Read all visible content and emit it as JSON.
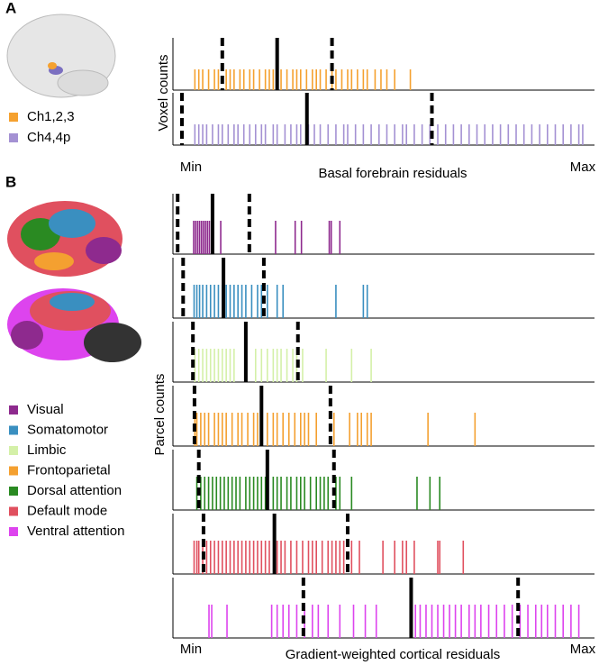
{
  "chart_data": [
    {
      "type": "rug",
      "panel_label": "A",
      "xlabel": "Basal forebrain residuals",
      "ylabel": "Voxel counts",
      "xlim": [
        -4.6,
        103
      ],
      "xticks": [
        {
          "value": 0,
          "label": "Min"
        },
        {
          "value": 100,
          "label": "Max"
        }
      ],
      "series": [
        {
          "name": "Ch1,2,3",
          "color": "#f5a12f",
          "summary": [
            8,
            22,
            36
          ],
          "values": [
            1,
            2,
            3,
            4.5,
            6,
            7,
            9,
            10,
            11,
            12.5,
            13.5,
            15,
            16,
            17.5,
            19,
            20,
            21,
            23,
            24.5,
            26,
            27,
            28,
            29.5,
            31,
            32,
            33,
            34.5,
            36,
            37,
            38.5,
            40,
            41,
            42.5,
            44,
            45,
            47,
            48.5,
            50,
            52,
            56
          ]
        },
        {
          "name": "Ch4,4p",
          "color": "#a491d3",
          "summary": [
            -2.3,
            29.6,
            61.5
          ],
          "values": [
            1,
            2,
            3,
            4,
            5.5,
            7,
            8,
            9.5,
            11,
            12,
            13.5,
            15,
            16.5,
            18,
            19,
            21,
            22,
            24,
            25.5,
            27,
            28,
            30,
            31.5,
            33,
            35,
            37,
            39,
            40,
            42,
            44,
            46,
            48,
            50,
            52,
            54,
            55,
            57,
            59,
            61,
            63,
            65,
            67,
            69,
            71,
            73,
            75,
            77,
            79,
            81,
            83,
            85,
            87,
            89,
            91,
            93,
            95,
            97,
            99,
            100
          ]
        }
      ]
    },
    {
      "type": "rug",
      "panel_label": "B",
      "xlabel": "Gradient-weighted cortical residuals",
      "ylabel": "Parcel counts",
      "xlim": [
        -4.6,
        103
      ],
      "xticks": [
        {
          "value": 0,
          "label": "Min"
        },
        {
          "value": 100,
          "label": "Max"
        }
      ],
      "series": [
        {
          "name": "Visual",
          "color": "#8e2a8e",
          "summary": [
            -3.4,
            5.5,
            14.9
          ],
          "values": [
            0.7,
            1.2,
            1.7,
            2.2,
            2.7,
            3.2,
            3.7,
            4.2,
            4.7,
            5.3,
            7.6,
            21.6,
            26.6,
            28.2,
            35.3,
            35.8,
            38
          ]
        },
        {
          "name": "Somatomotor",
          "color": "#3a8fc0",
          "summary": [
            -2,
            8.3,
            18.6
          ],
          "values": [
            0.8,
            1.5,
            2.2,
            3,
            4,
            5,
            6,
            7,
            8,
            9,
            10,
            11,
            12,
            13,
            14,
            15.5,
            17,
            18,
            19.5,
            22,
            23.5,
            37,
            44,
            45
          ]
        },
        {
          "name": "Limbic",
          "color": "#d4f0a8",
          "summary": [
            0.5,
            14,
            27.3
          ],
          "values": [
            1,
            2,
            3,
            4,
            5,
            6,
            7,
            8,
            9,
            10,
            11,
            16.5,
            18,
            19.5,
            21,
            22,
            23,
            24.5,
            26,
            27,
            28.5,
            34.5,
            41,
            46
          ]
        },
        {
          "name": "Frontoparietal",
          "color": "#f4a030",
          "summary": [
            0.9,
            18,
            35.6
          ],
          "values": [
            1,
            1.5,
            2.5,
            3.5,
            4.5,
            6,
            7,
            8,
            9,
            10.5,
            12,
            13,
            14.5,
            16,
            17,
            18,
            19.5,
            21,
            22,
            23.5,
            25,
            26.5,
            28,
            29,
            30,
            32,
            36.5,
            40.5,
            42.5,
            43.5,
            45,
            46,
            60.5,
            72.5
          ]
        },
        {
          "name": "Dorsal attention",
          "color": "#2a8a22",
          "summary": [
            2,
            19.5,
            36.5
          ],
          "values": [
            1.5,
            2.5,
            3.5,
            4.5,
            5.5,
            6.5,
            7.5,
            8.5,
            9.5,
            10.5,
            11.5,
            12.5,
            14,
            15,
            16,
            17,
            18,
            19,
            21,
            22,
            23,
            24.5,
            25.5,
            27,
            28,
            29,
            30.5,
            32,
            33,
            34,
            35,
            37,
            38,
            41,
            57.7,
            61,
            63.5
          ]
        },
        {
          "name": "Default mode",
          "color": "#e0505f",
          "summary": [
            3.2,
            21.3,
            40
          ],
          "values": [
            0.8,
            1.5,
            2,
            3,
            4,
            5,
            6,
            7,
            8,
            9,
            10,
            11,
            12,
            13,
            14,
            15,
            16,
            17,
            18,
            19,
            20,
            22,
            23,
            24,
            25.5,
            27,
            28.5,
            30,
            31,
            32,
            33.5,
            35,
            36,
            37,
            38,
            39,
            41,
            43,
            49,
            52,
            54,
            55,
            57,
            63,
            63.5,
            69.5
          ]
        },
        {
          "name": "Ventral attention",
          "color": "#dd44ee",
          "summary": [
            28.7,
            56.2,
            83.5
          ],
          "values": [
            4.6,
            5.3,
            9.2,
            20.6,
            22,
            23.5,
            25,
            27,
            29,
            31,
            32.5,
            35,
            38,
            41.5,
            44.5,
            47.3,
            57.3,
            58.5,
            60,
            61.5,
            63,
            64.5,
            66,
            67.5,
            69,
            71,
            72.5,
            74,
            76,
            78,
            80,
            82,
            84,
            86,
            88,
            89.5,
            91,
            93,
            95,
            97,
            99
          ]
        }
      ]
    }
  ]
}
